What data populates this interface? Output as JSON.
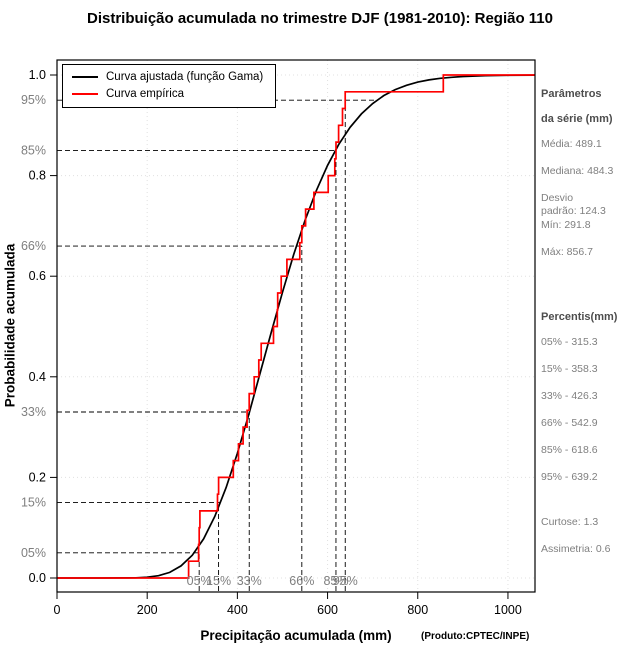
{
  "title": "Distribuição acumulada no trimestre DJF (1981-2010): Região 110",
  "legend": {
    "fitted": "Curva ajustada (função Gama)",
    "empirical": "Curva empírica"
  },
  "axes": {
    "x_label": "Precipitação acumulada (mm)",
    "y_label": "Probabilidade acumulada",
    "source": "(Produto:CPTEC/INPE)"
  },
  "colors": {
    "fitted": "#000000",
    "empirical": "#ff0000",
    "dashed": "#000000",
    "gray_text": "#7f7f7f",
    "grid": "#e0e0e0"
  },
  "side_panel": {
    "params_title_line1": "Parâmetros",
    "params_title_line2": "da série (mm)",
    "params_lines": [
      "Média: 489.1",
      "Mediana: 484.3",
      "Desvio\npadrão: 124.3",
      "Mín: 291.8",
      "Máx: 856.7"
    ],
    "percentiles_title": "Percentis(mm)",
    "percentiles_lines": [
      "05% - 315.3",
      "15% - 358.3",
      "33% - 426.3",
      "66% - 542.9",
      "85% - 618.6",
      "95% - 639.2"
    ],
    "moments_lines": [
      "Curtose: 1.3",
      "Assimetria: 0.6"
    ]
  },
  "chart_data": {
    "type": "line",
    "title": "Distribuição acumulada no trimestre DJF (1981-2010): Região 110",
    "xlabel": "Precipitação acumulada (mm)",
    "ylabel": "Probabilidade acumulada",
    "xlim": [
      0,
      1060
    ],
    "ylim": [
      -0.02,
      1.03
    ],
    "x_ticks": [
      0,
      200,
      400,
      600,
      800,
      1000
    ],
    "y_ticks": [
      0,
      0.2,
      0.4,
      0.6,
      0.8,
      1.0
    ],
    "y_tick_labels": [
      "0.0",
      "0.2",
      "0.4",
      "0.6",
      "0.8",
      "1.0"
    ],
    "grid": true,
    "legend_position": "top-left",
    "percentile_marks": [
      {
        "label": "05%",
        "p": 0.05,
        "x": 315.3
      },
      {
        "label": "15%",
        "p": 0.15,
        "x": 358.3
      },
      {
        "label": "33%",
        "p": 0.33,
        "x": 426.3
      },
      {
        "label": "66%",
        "p": 0.66,
        "x": 542.9
      },
      {
        "label": "85%",
        "p": 0.85,
        "x": 618.6
      },
      {
        "label": "95%",
        "p": 0.95,
        "x": 639.2
      }
    ],
    "series": [
      {
        "name": "Curva ajustada (função Gama)",
        "color": "#000000",
        "style": "smooth",
        "x": [
          0,
          100,
          150,
          175,
          200,
          225,
          250,
          275,
          300,
          325,
          350,
          375,
          400,
          425,
          450,
          475,
          500,
          525,
          550,
          575,
          600,
          625,
          650,
          675,
          700,
          725,
          750,
          775,
          800,
          825,
          850,
          875,
          900,
          950,
          1000,
          1060
        ],
        "y": [
          0,
          0,
          0.0001,
          0.0004,
          0.0015,
          0.0046,
          0.0112,
          0.0241,
          0.0453,
          0.0778,
          0.1224,
          0.1798,
          0.248,
          0.3247,
          0.4057,
          0.488,
          0.5682,
          0.6432,
          0.7107,
          0.77,
          0.8204,
          0.8623,
          0.896,
          0.9227,
          0.9434,
          0.9592,
          0.9709,
          0.9795,
          0.9858,
          0.9902,
          0.9934,
          0.9955,
          0.997,
          0.9987,
          0.9994,
          0.9998
        ]
      },
      {
        "name": "Curva empírica",
        "color": "#ff0000",
        "style": "step",
        "sorted_values": [
          291.8,
          314.0,
          315.3,
          316.8,
          356.0,
          358.3,
          391.0,
          402.4,
          412.8,
          421.5,
          426.3,
          437.2,
          447.6,
          452.9,
          480.1,
          488.5,
          489.5,
          497.2,
          509.8,
          538.5,
          542.9,
          551.3,
          569.8,
          601.5,
          616.0,
          618.6,
          624.4,
          633.1,
          639.2,
          856.7
        ]
      }
    ]
  }
}
